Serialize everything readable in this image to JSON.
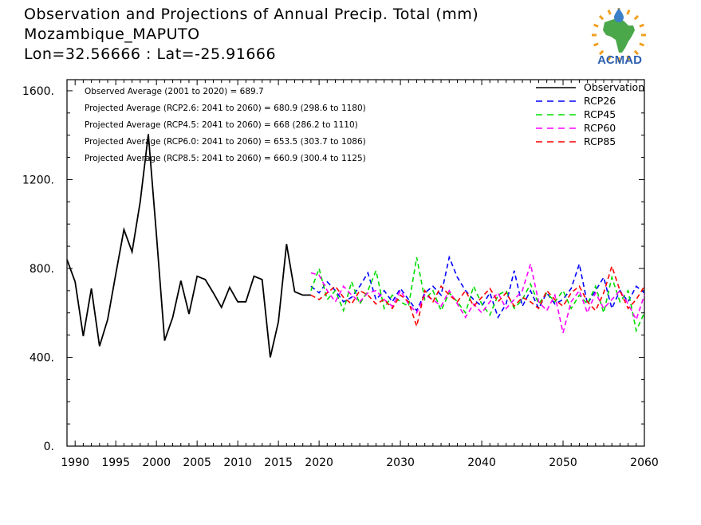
{
  "header": {
    "title_line1": "Observation and Projections of Annual Precip. Total (mm)",
    "title_line2": "Mozambique_MAPUTO",
    "title_line3": "Lon=32.56666 : Lat=-25.91666"
  },
  "logo": {
    "text": "ACMAD",
    "colors": {
      "africa": "#4aa84a",
      "sun": "#f0a020",
      "drop": "#3a7fc8",
      "text": "#2a5fb0"
    }
  },
  "chart_data": {
    "type": "line",
    "xlim": [
      1989,
      2060
    ],
    "ylim": [
      0,
      1650
    ],
    "x_ticks": [
      1990,
      1995,
      2000,
      2005,
      2010,
      2015,
      2020,
      2030,
      2040,
      2050,
      2060
    ],
    "x_tick_labels": [
      "1990",
      "1995",
      "2000",
      "2005",
      "2010",
      "2015",
      "2020",
      "2030",
      "2040",
      "2050",
      "2060"
    ],
    "y_ticks": [
      0,
      400,
      800,
      1200,
      1600
    ],
    "y_tick_labels": [
      "0.",
      "400.",
      "800.",
      "1200.",
      "1600."
    ],
    "annotations": [
      "Observed Average (2001 to 2020) = 689.7",
      "Projected Average (RCP2.6: 2041 to 2060) = 680.9 (298.6 to 1180)",
      "Projected Average (RCP4.5: 2041 to 2060) = 668 (286.2 to 1110)",
      "Projected Average (RCP6.0: 2041 to 2060) = 653.5 (303.7 to 1086)",
      "Projected Average (RCP8.5: 2041 to 2060) = 660.9 (300.4 to 1125)"
    ],
    "legend_position": "top-right",
    "series": [
      {
        "name": "Observation",
        "color": "#000000",
        "dashed": false,
        "x": [
          1989,
          1990,
          1991,
          1992,
          1993,
          1994,
          1995,
          1996,
          1997,
          1998,
          1999,
          2000,
          2001,
          2002,
          2003,
          2004,
          2005,
          2006,
          2007,
          2008,
          2009,
          2010,
          2011,
          2012,
          2013,
          2014,
          2015,
          2016,
          2017,
          2018,
          2019
        ],
        "values": [
          840,
          740,
          495,
          710,
          450,
          570,
          775,
          975,
          875,
          1100,
          1405,
          950,
          475,
          580,
          745,
          595,
          765,
          750,
          690,
          625,
          715,
          650,
          650,
          765,
          750,
          400,
          560,
          910,
          695,
          680,
          680
        ]
      },
      {
        "name": "RCP26",
        "color": "#0000ff",
        "dashed": true,
        "x": [
          2019,
          2020,
          2021,
          2022,
          2023,
          2024,
          2025,
          2026,
          2027,
          2028,
          2029,
          2030,
          2031,
          2032,
          2033,
          2034,
          2035,
          2036,
          2037,
          2038,
          2039,
          2040,
          2041,
          2042,
          2043,
          2044,
          2045,
          2046,
          2047,
          2048,
          2049,
          2050,
          2051,
          2052,
          2053,
          2054,
          2055,
          2056,
          2057,
          2058,
          2059,
          2060
        ],
        "values": [
          720,
          690,
          740,
          700,
          650,
          670,
          720,
          780,
          660,
          700,
          650,
          710,
          660,
          610,
          690,
          720,
          680,
          850,
          760,
          700,
          660,
          630,
          690,
          580,
          640,
          790,
          630,
          700,
          620,
          690,
          640,
          660,
          710,
          820,
          640,
          700,
          760,
          620,
          700,
          650,
          720,
          690
        ]
      },
      {
        "name": "RCP45",
        "color": "#00dd00",
        "dashed": true,
        "x": [
          2019,
          2020,
          2021,
          2022,
          2023,
          2024,
          2025,
          2026,
          2027,
          2028,
          2029,
          2030,
          2031,
          2032,
          2033,
          2034,
          2035,
          2036,
          2037,
          2038,
          2039,
          2040,
          2041,
          2042,
          2043,
          2044,
          2045,
          2046,
          2047,
          2048,
          2049,
          2050,
          2051,
          2052,
          2053,
          2054,
          2055,
          2056,
          2057,
          2058,
          2059,
          2060
        ],
        "values": [
          700,
          800,
          660,
          700,
          610,
          740,
          640,
          700,
          790,
          620,
          680,
          650,
          630,
          850,
          660,
          700,
          610,
          690,
          650,
          600,
          720,
          640,
          590,
          680,
          700,
          620,
          660,
          730,
          640,
          690,
          650,
          700,
          620,
          680,
          640,
          720,
          600,
          760,
          650,
          700,
          520,
          600
        ]
      },
      {
        "name": "RCP60",
        "color": "#ff00ff",
        "dashed": true,
        "x": [
          2019,
          2020,
          2021,
          2022,
          2023,
          2024,
          2025,
          2026,
          2027,
          2028,
          2029,
          2030,
          2031,
          2032,
          2033,
          2034,
          2035,
          2036,
          2037,
          2038,
          2039,
          2040,
          2041,
          2042,
          2043,
          2044,
          2045,
          2046,
          2047,
          2048,
          2049,
          2050,
          2051,
          2052,
          2053,
          2054,
          2055,
          2056,
          2057,
          2058,
          2059,
          2060
        ],
        "values": [
          780,
          770,
          700,
          650,
          720,
          680,
          650,
          690,
          700,
          660,
          630,
          700,
          640,
          600,
          680,
          660,
          630,
          700,
          640,
          580,
          640,
          600,
          650,
          690,
          620,
          660,
          700,
          820,
          650,
          610,
          680,
          510,
          650,
          700,
          600,
          690,
          620,
          660,
          700,
          640,
          570,
          680
        ]
      },
      {
        "name": "RCP85",
        "color": "#ff0000",
        "dashed": true,
        "x": [
          2019,
          2020,
          2021,
          2022,
          2023,
          2024,
          2025,
          2026,
          2027,
          2028,
          2029,
          2030,
          2031,
          2032,
          2033,
          2034,
          2035,
          2036,
          2037,
          2038,
          2039,
          2040,
          2041,
          2042,
          2043,
          2044,
          2045,
          2046,
          2047,
          2048,
          2049,
          2050,
          2051,
          2052,
          2053,
          2054,
          2055,
          2056,
          2057,
          2058,
          2059,
          2060
        ],
        "values": [
          680,
          660,
          690,
          720,
          670,
          640,
          700,
          680,
          640,
          660,
          620,
          680,
          650,
          540,
          700,
          650,
          720,
          680,
          650,
          700,
          630,
          670,
          710,
          650,
          690,
          630,
          670,
          650,
          620,
          700,
          660,
          630,
          690,
          720,
          650,
          610,
          690,
          810,
          700,
          620,
          660,
          720
        ]
      }
    ]
  }
}
